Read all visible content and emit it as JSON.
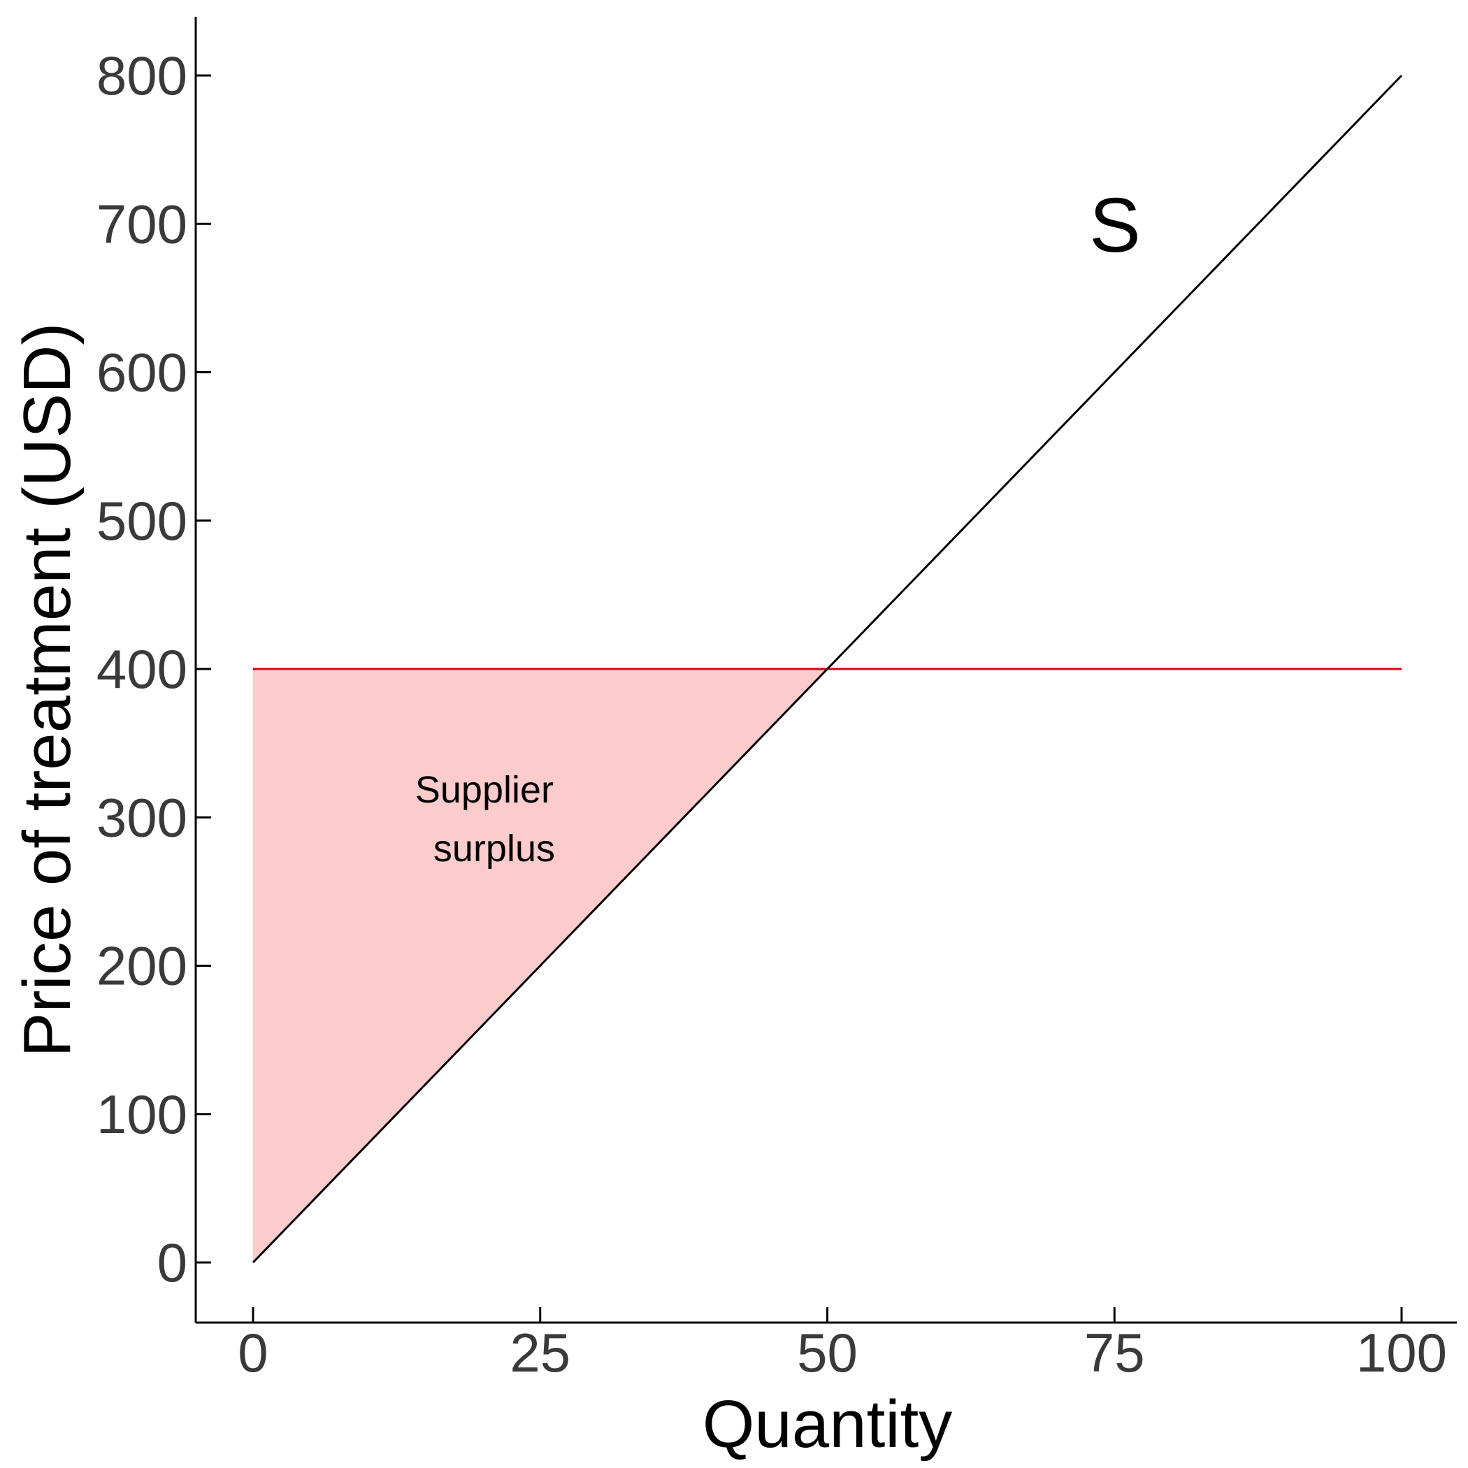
{
  "chart_data": {
    "type": "line",
    "xlabel": "Quantity",
    "ylabel": "Price of treatment (USD)",
    "x_ticks": [
      0,
      25,
      50,
      75,
      100
    ],
    "y_ticks": [
      0,
      100,
      200,
      300,
      400,
      500,
      600,
      700,
      800
    ],
    "xlim": [
      -5,
      105
    ],
    "ylim": [
      -40,
      840
    ],
    "grid": false,
    "colors": {
      "supply": "#000000",
      "price": "#e3000f",
      "surplus_fill": "#fccbcc"
    },
    "supply_curve": {
      "label": "S",
      "x": [
        0,
        100
      ],
      "y": [
        0,
        800
      ]
    },
    "price_line": {
      "x": [
        0,
        100
      ],
      "y": [
        400,
        400
      ]
    },
    "surplus_area": {
      "label_lines": [
        "Supplier",
        "surplus"
      ],
      "x": [
        0,
        0,
        50
      ],
      "y": [
        0,
        400,
        400
      ]
    }
  }
}
